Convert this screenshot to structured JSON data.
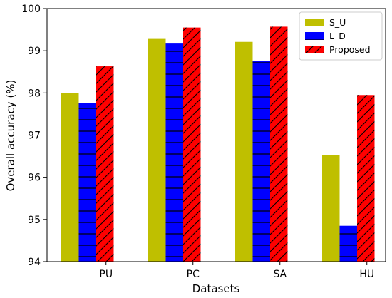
{
  "chart_data": {
    "type": "bar",
    "title": "",
    "xlabel": "Datasets",
    "ylabel": "Overall accuracy (%)",
    "categories": [
      "PU",
      "PC",
      "SA",
      "HU"
    ],
    "ylim": [
      94,
      100
    ],
    "yticks": [
      "94",
      "95",
      "96",
      "97",
      "98",
      "99",
      "100"
    ],
    "grid": false,
    "legend_position": "top-right",
    "series": [
      {
        "name": "S_U",
        "values": [
          98.0,
          99.28,
          99.21,
          96.52
        ],
        "color": "#bfbf00",
        "hatch": "none"
      },
      {
        "name": "L_D",
        "values": [
          97.76,
          99.17,
          98.75,
          94.85
        ],
        "color": "#0000ff",
        "hatch": "horizontal"
      },
      {
        "name": "Proposed",
        "values": [
          98.63,
          99.55,
          99.57,
          97.95
        ],
        "color": "#ff0000",
        "hatch": "diagonal"
      }
    ]
  }
}
